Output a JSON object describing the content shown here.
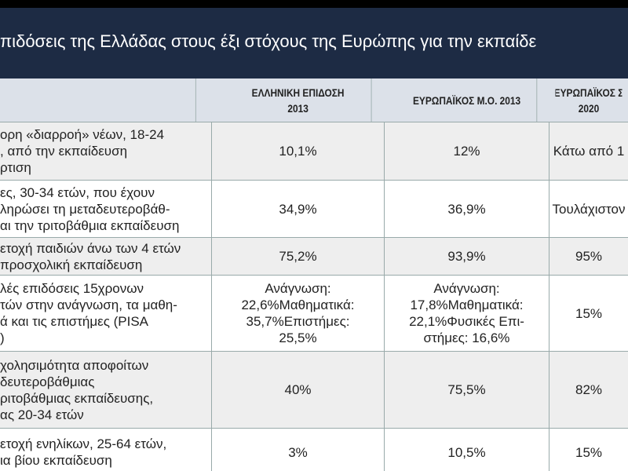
{
  "header": {
    "title": "πιδόσεις της Ελλάδας στους έξι στόχους της Ευρώπης για την εκπαίδε"
  },
  "table": {
    "columns": [
      [
        "ΕΛΛΗΝΙΚΗ ΕΠΙΔΟΣΗ",
        "2013"
      ],
      [
        "ΕΥΡΩΠΑΪΚΟΣ Μ.Ο. 2013"
      ],
      [
        "ΕΥΡΩΠΑΪΚΟΣ Σ",
        "2020"
      ]
    ],
    "rows": [
      [
        [
          "ορη «διαρροή» νέων, 18-24",
          ", από την εκπαίδευση",
          "ρτιση"
        ],
        [
          "10,1%"
        ],
        [
          "12%"
        ],
        [
          "Κάτω από 1"
        ]
      ],
      [
        [
          "ες, 30-34 ετών, που έχουν",
          "ληρώσει τη μεταδευτεροβάθ-",
          "αι την τριτοβάθμια εκπαίδευση"
        ],
        [
          "34,9%"
        ],
        [
          "36,9%"
        ],
        [
          "Τουλάχιστον"
        ]
      ],
      [
        [
          "ετοχή παιδιών άνω των 4 ετών",
          "προσχολική εκπαίδευση"
        ],
        [
          "75,2%"
        ],
        [
          "93,9%"
        ],
        [
          "95%"
        ]
      ],
      [
        [
          "λές επιδόσεις 15χρονων",
          "τών στην ανάγνωση, τα μαθη-",
          "ά και τις επιστήμες (PISA",
          ")"
        ],
        [
          "Ανάγνωση:",
          "22,6%Μαθηματικά:",
          "35,7%Επιστήμες:",
          "25,5%"
        ],
        [
          "Ανάγνωση:",
          "17,8%Μαθηματικά:",
          "22,1%Φυσικές Επι-",
          "στήμες: 16,6%"
        ],
        [
          "15%"
        ]
      ],
      [
        [
          "χολησιμότητα αποφοίτων",
          "δευτεροβάθμιας",
          "ριτοβάθμιας εκπαίδευσης,",
          "ας 20-34 ετών"
        ],
        [
          "40%"
        ],
        [
          "75,5%"
        ],
        [
          "82%"
        ]
      ],
      [
        [
          "ετοχή ενηλίκων, 25-64 ετών,",
          "ια βίου εκπαίδευση"
        ],
        [
          "3%"
        ],
        [
          "10,5%"
        ],
        [
          "15%"
        ]
      ]
    ]
  }
}
